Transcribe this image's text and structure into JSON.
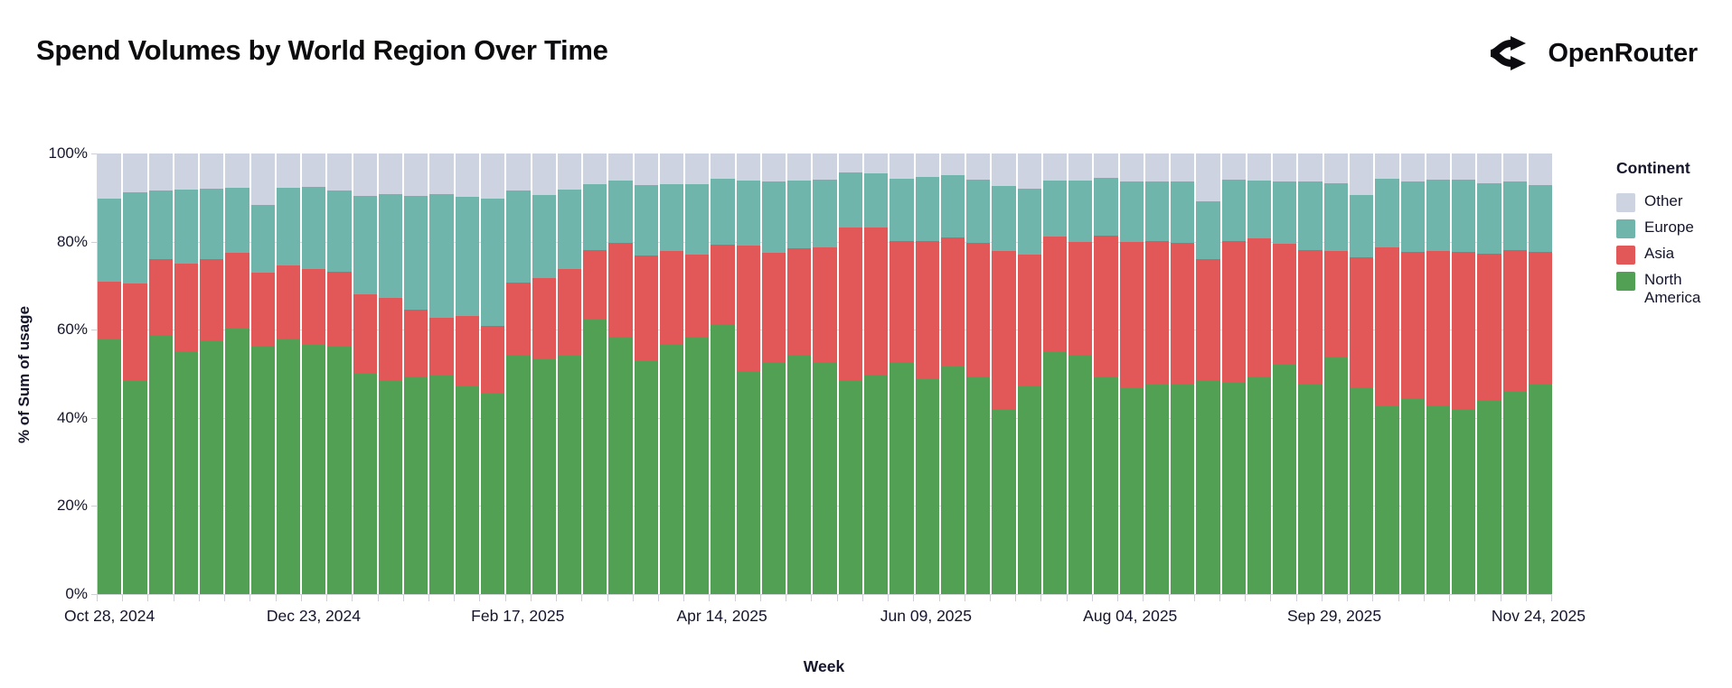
{
  "header": {
    "title": "Spend Volumes by World Region Over Time",
    "brand": "OpenRouter"
  },
  "chart_data": {
    "type": "bar",
    "stacked": true,
    "normalized_percent": true,
    "title": "Spend Volumes by World Region Over Time",
    "xlabel": "Week",
    "ylabel": "% of Sum of usage",
    "ylim": [
      0,
      100
    ],
    "y_ticks": [
      "0%",
      "20%",
      "40%",
      "60%",
      "80%",
      "100%"
    ],
    "x_tick_every": 8,
    "x_tick_labels": [
      "Oct 28, 2024",
      "Dec 23, 2024",
      "Feb 17, 2025",
      "Apr 14, 2025",
      "Jun 09, 2025",
      "Aug 04, 2025",
      "Sep 29, 2025",
      "Nov 24, 2025"
    ],
    "grid": true,
    "categories": [
      "Oct 28, 2024",
      "Nov 04, 2024",
      "Nov 11, 2024",
      "Nov 18, 2024",
      "Nov 25, 2024",
      "Dec 02, 2024",
      "Dec 09, 2024",
      "Dec 16, 2024",
      "Dec 23, 2024",
      "Dec 30, 2024",
      "Jan 06, 2025",
      "Jan 13, 2025",
      "Jan 20, 2025",
      "Jan 27, 2025",
      "Feb 03, 2025",
      "Feb 10, 2025",
      "Feb 17, 2025",
      "Feb 24, 2025",
      "Mar 03, 2025",
      "Mar 10, 2025",
      "Mar 17, 2025",
      "Mar 24, 2025",
      "Mar 31, 2025",
      "Apr 07, 2025",
      "Apr 14, 2025",
      "Apr 21, 2025",
      "Apr 28, 2025",
      "May 05, 2025",
      "May 12, 2025",
      "May 19, 2025",
      "May 26, 2025",
      "Jun 02, 2025",
      "Jun 09, 2025",
      "Jun 16, 2025",
      "Jun 23, 2025",
      "Jun 30, 2025",
      "Jul 07, 2025",
      "Jul 14, 2025",
      "Jul 21, 2025",
      "Jul 28, 2025",
      "Aug 04, 2025",
      "Aug 11, 2025",
      "Aug 18, 2025",
      "Aug 25, 2025",
      "Sep 01, 2025",
      "Sep 08, 2025",
      "Sep 15, 2025",
      "Sep 22, 2025",
      "Sep 29, 2025",
      "Oct 06, 2025",
      "Oct 13, 2025",
      "Oct 20, 2025",
      "Oct 27, 2025",
      "Nov 03, 2025",
      "Nov 10, 2025",
      "Nov 17, 2025",
      "Nov 24, 2025"
    ],
    "series": [
      {
        "name": "North America",
        "color": "#52a053",
        "values": [
          57.8,
          48.4,
          58.8,
          55.2,
          57.5,
          60.3,
          56.4,
          58.0,
          56.6,
          56.2,
          50.0,
          48.5,
          49.3,
          49.5,
          47.2,
          45.5,
          54.2,
          53.3,
          54.0,
          62.3,
          58.3,
          52.9,
          56.8,
          58.3,
          61.3,
          50.6,
          52.7,
          54.3,
          52.6,
          48.5,
          49.8,
          52.6,
          48.7,
          51.7,
          49.4,
          42.0,
          47.3,
          55.0,
          54.3,
          49.2,
          46.7,
          47.6,
          47.8,
          48.5,
          48.0,
          49.4,
          52.0,
          47.7,
          53.8,
          47.0,
          42.7,
          44.5,
          42.9,
          42.0,
          44.1,
          45.9,
          47.7
        ]
      },
      {
        "name": "Asia",
        "color": "#e25757",
        "values": [
          13.0,
          22.1,
          17.2,
          19.9,
          18.5,
          17.1,
          16.6,
          16.6,
          17.2,
          17.0,
          18.1,
          18.8,
          15.3,
          13.2,
          15.9,
          15.3,
          16.4,
          18.4,
          19.8,
          15.8,
          21.4,
          24.0,
          21.0,
          18.8,
          18.0,
          28.6,
          24.7,
          24.2,
          26.1,
          34.7,
          33.4,
          27.6,
          31.4,
          29.2,
          30.3,
          35.8,
          29.8,
          26.1,
          25.7,
          32.1,
          33.3,
          32.5,
          32.0,
          27.5,
          32.2,
          31.3,
          27.5,
          30.3,
          24.0,
          29.4,
          35.9,
          33.1,
          34.9,
          35.6,
          33.1,
          32.2,
          29.9
        ]
      },
      {
        "name": "Europe",
        "color": "#70b5ac",
        "values": [
          18.9,
          20.6,
          15.7,
          16.7,
          16.0,
          14.9,
          15.4,
          17.6,
          18.6,
          18.4,
          22.3,
          23.4,
          25.7,
          28.0,
          27.0,
          29.0,
          21.1,
          18.8,
          18.0,
          15.0,
          14.2,
          16.0,
          15.3,
          16.0,
          14.9,
          14.7,
          16.2,
          15.4,
          15.4,
          12.4,
          12.3,
          14.1,
          14.5,
          14.1,
          14.3,
          14.8,
          15.0,
          12.8,
          13.8,
          13.1,
          13.6,
          13.5,
          13.8,
          13.1,
          13.8,
          13.2,
          14.2,
          15.7,
          15.4,
          14.1,
          15.7,
          16.1,
          16.3,
          16.5,
          16.1,
          15.6,
          15.3
        ]
      },
      {
        "name": "Other",
        "color": "#cdd3e1",
        "values": [
          10.3,
          8.9,
          8.3,
          8.2,
          8.0,
          7.7,
          11.6,
          7.8,
          7.6,
          8.4,
          9.6,
          9.3,
          9.7,
          9.3,
          9.9,
          10.2,
          8.3,
          9.5,
          8.2,
          6.9,
          6.1,
          7.1,
          6.9,
          6.9,
          5.8,
          6.1,
          6.4,
          6.1,
          5.9,
          4.4,
          4.5,
          5.7,
          5.4,
          5.0,
          6.0,
          7.4,
          7.9,
          6.1,
          6.2,
          5.6,
          6.4,
          6.4,
          6.4,
          10.9,
          6.0,
          6.1,
          6.3,
          6.3,
          6.8,
          9.5,
          5.7,
          6.3,
          5.9,
          5.9,
          6.7,
          6.3,
          7.1
        ]
      }
    ],
    "legend": {
      "title": "Continent",
      "position": "right",
      "entries": [
        {
          "label": "Other",
          "color": "#cdd3e1"
        },
        {
          "label": "Europe",
          "color": "#70b5ac"
        },
        {
          "label": "Asia",
          "color": "#e25757"
        },
        {
          "label": "North America",
          "color": "#52a053"
        }
      ]
    }
  }
}
